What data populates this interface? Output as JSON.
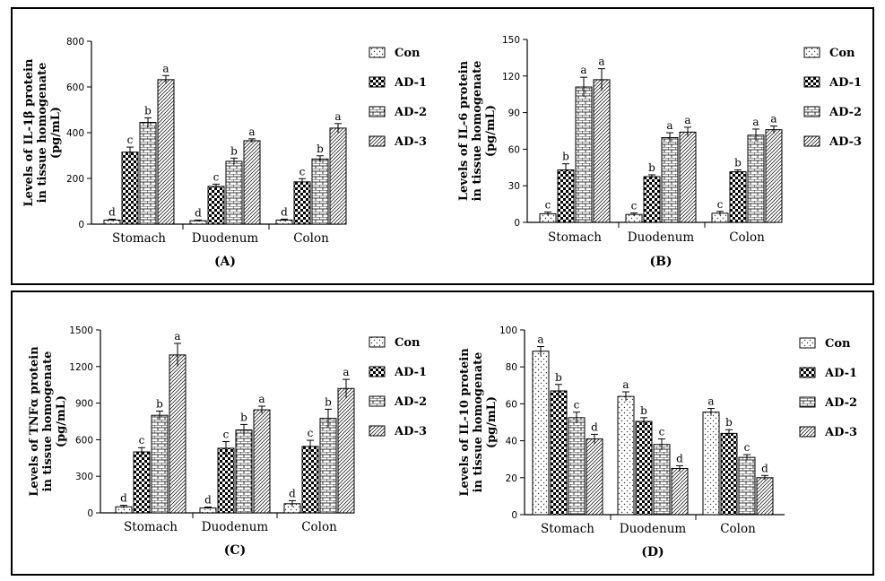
{
  "legend": [
    "Con",
    "AD-1",
    "AD-2",
    "AD-3"
  ],
  "colors": {
    "frame": "#000000",
    "bar_edge": "#000000",
    "fill": "#ffffff"
  },
  "patterns": [
    "sparse-dots",
    "checker",
    "brick",
    "diagonal-hatch"
  ],
  "chart_data": [
    {
      "type": "bar",
      "panel_label": "(A)",
      "ylabel_lines": [
        "Levels of IL-1β protein",
        "in tissue homogenate",
        "(pg/mL)"
      ],
      "categories": [
        "Stomach",
        "Duodenum",
        "Colon"
      ],
      "ylim": [
        0,
        800
      ],
      "yticks": [
        0,
        200,
        400,
        600,
        800
      ],
      "series": [
        {
          "name": "Con",
          "values": [
            18,
            15,
            18
          ],
          "errors": [
            4,
            3,
            4
          ],
          "letters": [
            "d",
            "d",
            "d"
          ]
        },
        {
          "name": "AD-1",
          "values": [
            315,
            165,
            185
          ],
          "errors": [
            22,
            10,
            14
          ],
          "letters": [
            "c",
            "c",
            "c"
          ]
        },
        {
          "name": "AD-2",
          "values": [
            445,
            275,
            285
          ],
          "errors": [
            20,
            14,
            14
          ],
          "letters": [
            "b",
            "b",
            "b"
          ]
        },
        {
          "name": "AD-3",
          "values": [
            632,
            365,
            420
          ],
          "errors": [
            18,
            8,
            20
          ],
          "letters": [
            "a",
            "a",
            "a"
          ]
        }
      ]
    },
    {
      "type": "bar",
      "panel_label": "(B)",
      "ylabel_lines": [
        "Levels of IL-6 protein",
        "in tissue homogenate",
        "(pg/mL)"
      ],
      "categories": [
        "Stomach",
        "Duodenum",
        "Colon"
      ],
      "ylim": [
        0,
        150
      ],
      "yticks": [
        0,
        30,
        60,
        90,
        120,
        150
      ],
      "series": [
        {
          "name": "Con",
          "values": [
            7,
            6.5,
            7.5
          ],
          "errors": [
            1.5,
            1.2,
            1.5
          ],
          "letters": [
            "c",
            "c",
            "c"
          ]
        },
        {
          "name": "AD-1",
          "values": [
            43,
            37.5,
            41.5
          ],
          "errors": [
            5,
            1.5,
            1.5
          ],
          "letters": [
            "b",
            "b",
            "b"
          ]
        },
        {
          "name": "AD-2",
          "values": [
            111,
            69.5,
            71.5
          ],
          "errors": [
            8,
            4,
            5
          ],
          "letters": [
            "a",
            "a",
            "a"
          ]
        },
        {
          "name": "AD-3",
          "values": [
            117,
            74,
            76
          ],
          "errors": [
            9,
            4,
            3
          ],
          "letters": [
            "a",
            "a",
            "a"
          ]
        }
      ]
    },
    {
      "type": "bar",
      "panel_label": "(C)",
      "ylabel_lines": [
        "Levels of TNFα protein",
        "in tissue homogenate",
        "(pg/mL)"
      ],
      "categories": [
        "Stomach",
        "Duodenum",
        "Colon"
      ],
      "ylim": [
        0,
        1500
      ],
      "yticks": [
        0,
        300,
        600,
        900,
        1200,
        1500
      ],
      "series": [
        {
          "name": "Con",
          "values": [
            50,
            40,
            75
          ],
          "errors": [
            12,
            8,
            25
          ],
          "letters": [
            "d",
            "d",
            "d"
          ]
        },
        {
          "name": "AD-1",
          "values": [
            500,
            530,
            545
          ],
          "errors": [
            35,
            55,
            50
          ],
          "letters": [
            "c",
            "c",
            "c"
          ]
        },
        {
          "name": "AD-2",
          "values": [
            800,
            680,
            775
          ],
          "errors": [
            35,
            45,
            75
          ],
          "letters": [
            "b",
            "b",
            "b"
          ]
        },
        {
          "name": "AD-3",
          "values": [
            1295,
            845,
            1020
          ],
          "errors": [
            95,
            30,
            75
          ],
          "letters": [
            "a",
            "a",
            "a"
          ]
        }
      ]
    },
    {
      "type": "bar",
      "panel_label": "(D)",
      "ylabel_lines": [
        "Levels of IL-10 protein",
        "in tissue homogenate",
        "(pg/mL)"
      ],
      "categories": [
        "Stomach",
        "Duodenum",
        "Colon"
      ],
      "ylim": [
        0,
        100
      ],
      "yticks": [
        0,
        20,
        40,
        60,
        80,
        100
      ],
      "series": [
        {
          "name": "Con",
          "values": [
            88.5,
            64,
            55.5
          ],
          "errors": [
            2.5,
            2.5,
            2
          ],
          "letters": [
            "a",
            "a",
            "a"
          ]
        },
        {
          "name": "AD-1",
          "values": [
            67,
            50.5,
            44
          ],
          "errors": [
            3.5,
            2,
            2
          ],
          "letters": [
            "b",
            "b",
            "b"
          ]
        },
        {
          "name": "AD-2",
          "values": [
            52.5,
            38,
            31
          ],
          "errors": [
            3,
            3,
            1.5
          ],
          "letters": [
            "c",
            "c",
            "c"
          ]
        },
        {
          "name": "AD-3",
          "values": [
            41,
            25,
            20
          ],
          "errors": [
            2.5,
            1.5,
            1.2
          ],
          "letters": [
            "d",
            "d",
            "d"
          ]
        }
      ]
    }
  ]
}
